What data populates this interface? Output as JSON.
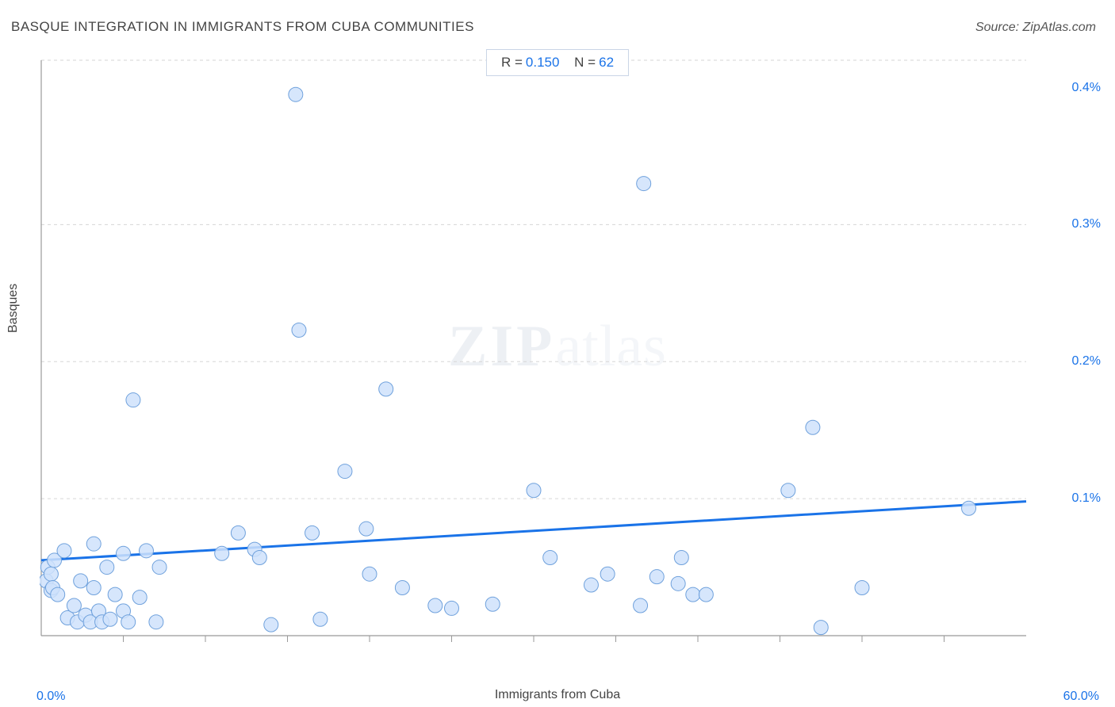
{
  "title": "BASQUE INTEGRATION IN IMMIGRANTS FROM CUBA COMMUNITIES",
  "source": "Source: ZipAtlas.com",
  "chart": {
    "type": "scatter",
    "x_label": "Immigrants from Cuba",
    "y_label": "Basques",
    "xlim": [
      0,
      60
    ],
    "ylim": [
      0,
      0.42
    ],
    "x_min_label": "0.0%",
    "x_max_label": "60.0%",
    "y_ticks": [
      {
        "v": 0.1,
        "label": "0.1%"
      },
      {
        "v": 0.2,
        "label": "0.2%"
      },
      {
        "v": 0.3,
        "label": "0.3%"
      },
      {
        "v": 0.4,
        "label": "0.4%"
      }
    ],
    "x_minor_ticks": [
      5,
      10,
      15,
      20,
      25,
      30,
      35,
      40,
      45,
      50,
      55
    ],
    "grid_h_vals": [
      0.1,
      0.2,
      0.3,
      0.42
    ],
    "stats": {
      "R_label": "R =",
      "R_value": "0.150",
      "N_label": "N =",
      "N_value": "62"
    },
    "background_color": "#ffffff",
    "axis_color": "#999999",
    "grid_color": "#d6d6d6",
    "grid_dash": "4,4",
    "tick_label_color": "#1a73e8",
    "marker_fill": "#cfe2fb",
    "marker_stroke": "#6fa1dc",
    "marker_opacity": 0.85,
    "marker_radius": 9,
    "trend_color": "#1a73e8",
    "trend_width": 3,
    "trend_line": {
      "x1": 0,
      "y1": 0.055,
      "x2": 60,
      "y2": 0.098
    },
    "watermark_zip": "ZIP",
    "watermark_atlas": "atlas",
    "points": [
      [
        0.3,
        0.04
      ],
      [
        0.4,
        0.05
      ],
      [
        0.6,
        0.033
      ],
      [
        0.6,
        0.045
      ],
      [
        0.7,
        0.035
      ],
      [
        0.8,
        0.055
      ],
      [
        1.0,
        0.03
      ],
      [
        1.4,
        0.062
      ],
      [
        1.6,
        0.013
      ],
      [
        2.0,
        0.022
      ],
      [
        2.2,
        0.01
      ],
      [
        2.4,
        0.04
      ],
      [
        2.7,
        0.015
      ],
      [
        3.0,
        0.01
      ],
      [
        3.2,
        0.035
      ],
      [
        3.2,
        0.067
      ],
      [
        3.5,
        0.018
      ],
      [
        3.7,
        0.01
      ],
      [
        4.0,
        0.05
      ],
      [
        4.2,
        0.012
      ],
      [
        4.5,
        0.03
      ],
      [
        5.0,
        0.06
      ],
      [
        5.0,
        0.018
      ],
      [
        5.3,
        0.01
      ],
      [
        5.6,
        0.172
      ],
      [
        6.0,
        0.028
      ],
      [
        6.4,
        0.062
      ],
      [
        7.0,
        0.01
      ],
      [
        7.2,
        0.05
      ],
      [
        11.0,
        0.06
      ],
      [
        12.0,
        0.075
      ],
      [
        13.0,
        0.063
      ],
      [
        13.3,
        0.057
      ],
      [
        14.0,
        0.008
      ],
      [
        15.5,
        0.395
      ],
      [
        15.7,
        0.223
      ],
      [
        16.5,
        0.075
      ],
      [
        17.0,
        0.012
      ],
      [
        18.5,
        0.12
      ],
      [
        19.8,
        0.078
      ],
      [
        20.0,
        0.045
      ],
      [
        21.0,
        0.18
      ],
      [
        22.0,
        0.035
      ],
      [
        24.0,
        0.022
      ],
      [
        25.0,
        0.02
      ],
      [
        27.5,
        0.023
      ],
      [
        30.0,
        0.106
      ],
      [
        31.0,
        0.057
      ],
      [
        33.5,
        0.037
      ],
      [
        34.5,
        0.045
      ],
      [
        36.5,
        0.022
      ],
      [
        36.7,
        0.33
      ],
      [
        37.5,
        0.043
      ],
      [
        38.8,
        0.038
      ],
      [
        39.0,
        0.057
      ],
      [
        39.7,
        0.03
      ],
      [
        40.5,
        0.03
      ],
      [
        45.5,
        0.106
      ],
      [
        47.0,
        0.152
      ],
      [
        47.5,
        0.006
      ],
      [
        50.0,
        0.035
      ],
      [
        56.5,
        0.093
      ]
    ]
  }
}
